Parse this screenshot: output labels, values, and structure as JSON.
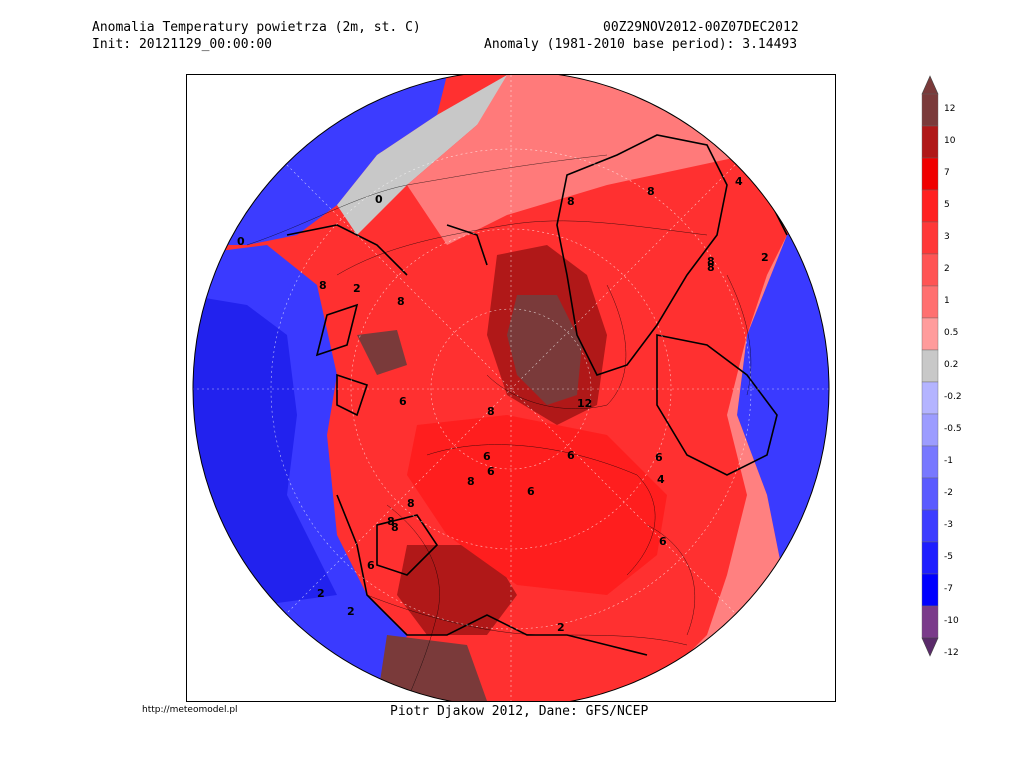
{
  "header": {
    "title": "Anomalia Temperatury powietrza (2m, st. C)",
    "init": "Init: 20121129_00:00:00",
    "period": "00Z29NOV2012-00Z07DEC2012",
    "anomaly": "Anomaly (1981-2010 base period): 3.14493"
  },
  "footer": {
    "url": "http://meteomodel.pl",
    "credit": "Piotr Djakow 2012, Dane: GFS/NCEP"
  },
  "legend": {
    "levels": [
      {
        "label": "12",
        "color": "#7a3a3a"
      },
      {
        "label": "10",
        "color": "#b01818"
      },
      {
        "label": "7",
        "color": "#f00000"
      },
      {
        "label": "5",
        "color": "#ff2020"
      },
      {
        "label": "3",
        "color": "#ff3838"
      },
      {
        "label": "2",
        "color": "#ff5454"
      },
      {
        "label": "1",
        "color": "#ff7070"
      },
      {
        "label": "0.5",
        "color": "#ff9c9c"
      },
      {
        "label": "0.2",
        "color": "#c8c8c8"
      },
      {
        "label": "-0.2",
        "color": "#b4b4ff"
      },
      {
        "label": "-0.5",
        "color": "#9c9cff"
      },
      {
        "label": "-1",
        "color": "#7878ff"
      },
      {
        "label": "-2",
        "color": "#5a5aff"
      },
      {
        "label": "-3",
        "color": "#3c3cff"
      },
      {
        "label": "-5",
        "color": "#1e1eff"
      },
      {
        "label": "-7",
        "color": "#0000ff"
      },
      {
        "label": "-10",
        "color": "#7a3a8a"
      },
      {
        "label": "-12",
        "color": "#5a2a6a"
      }
    ]
  },
  "map": {
    "contour_labels": [
      "0",
      "0",
      "2",
      "8",
      "8",
      "6",
      "8",
      "8",
      "8",
      "8",
      "4",
      "8",
      "2",
      "6",
      "12",
      "8",
      "6",
      "6",
      "8",
      "4",
      "6",
      "6",
      "2",
      "6",
      "2",
      "2",
      "6",
      "8",
      "8"
    ]
  }
}
